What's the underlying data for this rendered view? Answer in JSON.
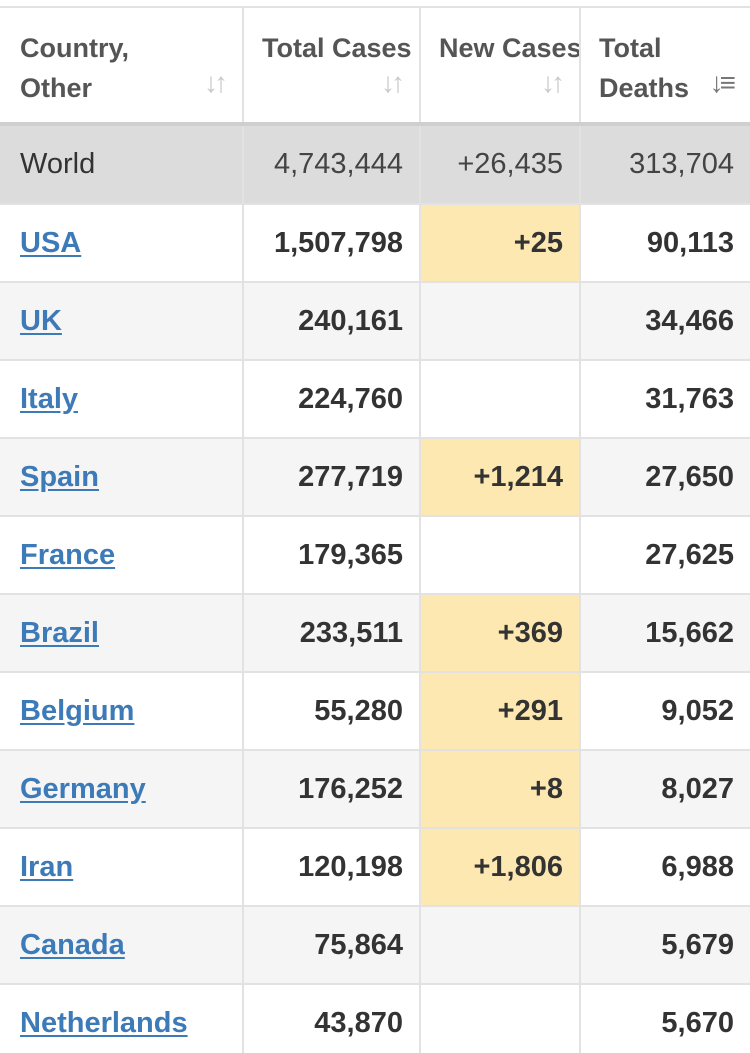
{
  "headers": {
    "country": "Country, Other",
    "total_cases": "Total Cases",
    "new_cases": "New Cases",
    "total_deaths": "Total Deaths"
  },
  "sort_icons": {
    "country": "sort-icon",
    "total_cases": "sort-icon",
    "new_cases": "sort-icon",
    "total_deaths": "sort-descending-icon"
  },
  "colors": {
    "world_row_bg": "#dcdcdc",
    "new_cases_highlight": "#fce8b0",
    "link": "#3d7ab8"
  },
  "world": {
    "country": "World",
    "total_cases": "4,743,444",
    "new_cases": "+26,435",
    "total_deaths": "313,704"
  },
  "rows": [
    {
      "country": "USA",
      "total_cases": "1,507,798",
      "new_cases": "+25",
      "total_deaths": "90,113"
    },
    {
      "country": "UK",
      "total_cases": "240,161",
      "new_cases": "",
      "total_deaths": "34,466"
    },
    {
      "country": "Italy",
      "total_cases": "224,760",
      "new_cases": "",
      "total_deaths": "31,763"
    },
    {
      "country": "Spain",
      "total_cases": "277,719",
      "new_cases": "+1,214",
      "total_deaths": "27,650"
    },
    {
      "country": "France",
      "total_cases": "179,365",
      "new_cases": "",
      "total_deaths": "27,625"
    },
    {
      "country": "Brazil",
      "total_cases": "233,511",
      "new_cases": "+369",
      "total_deaths": "15,662"
    },
    {
      "country": "Belgium",
      "total_cases": "55,280",
      "new_cases": "+291",
      "total_deaths": "9,052"
    },
    {
      "country": "Germany",
      "total_cases": "176,252",
      "new_cases": "+8",
      "total_deaths": "8,027"
    },
    {
      "country": "Iran",
      "total_cases": "120,198",
      "new_cases": "+1,806",
      "total_deaths": "6,988"
    },
    {
      "country": "Canada",
      "total_cases": "75,864",
      "new_cases": "",
      "total_deaths": "5,679"
    },
    {
      "country": "Netherlands",
      "total_cases": "43,870",
      "new_cases": "",
      "total_deaths": "5,670"
    }
  ]
}
